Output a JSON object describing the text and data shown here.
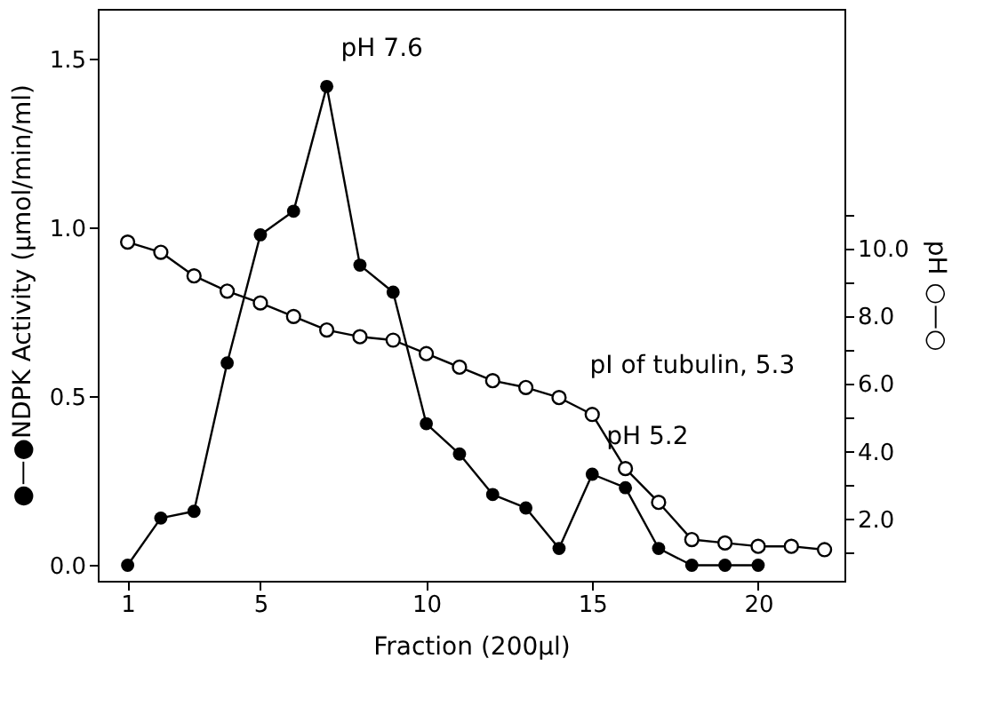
{
  "chart_data": {
    "type": "line",
    "xlabel": "Fraction (200µl)",
    "ylabel": "●—●NDPK Activity (µmol/min/ml)",
    "y2label": "pH ○—○",
    "x": [
      1,
      2,
      3,
      4,
      5,
      6,
      7,
      8,
      9,
      10,
      11,
      12,
      13,
      14,
      15,
      16,
      17,
      18,
      19,
      20,
      21,
      22
    ],
    "series": [
      {
        "color": "#000000",
        "x": [
          1,
          2,
          3,
          4,
          5,
          6,
          7,
          8,
          9,
          10,
          11,
          12,
          13,
          14,
          15,
          16,
          17,
          18,
          19,
          20
        ],
        "values": [
          0.0,
          0.14,
          0.16,
          0.6,
          0.98,
          1.05,
          1.42,
          0.89,
          0.81,
          0.42,
          0.33,
          0.21,
          0.17,
          0.05,
          0.27,
          0.23,
          0.05,
          0.0,
          0.0,
          0.0
        ]
      },
      {
        "color": "#000000",
        "axis": "y2",
        "values": [
          10.2,
          9.9,
          9.2,
          8.75,
          8.4,
          8.0,
          7.6,
          7.4,
          7.3,
          6.9,
          6.5,
          6.1,
          5.9,
          5.6,
          5.1,
          3.5,
          2.5,
          1.4,
          1.3,
          1.2,
          1.2,
          1.1
        ]
      }
    ],
    "xlim": [
      0.1,
      22.6
    ],
    "xticks": [
      1,
      5,
      10,
      15,
      20
    ],
    "ylim": [
      -0.046,
      1.65
    ],
    "yticks": [
      {
        "value": 0,
        "label": "0.0"
      },
      {
        "value": 0.5,
        "label": "0.5"
      },
      {
        "value": 1,
        "label": "1.0"
      },
      {
        "value": 1.5,
        "label": "1.5"
      }
    ],
    "y2lim": [
      0.18,
      17.1
    ],
    "y2ticks": [
      {
        "value": 1,
        "label": null
      },
      {
        "value": 2,
        "label": "2.0"
      },
      {
        "value": 3,
        "label": null
      },
      {
        "value": 4,
        "label": "4.0"
      },
      {
        "value": 5,
        "label": null
      },
      {
        "value": 6,
        "label": "6.0"
      },
      {
        "value": 7,
        "label": null
      },
      {
        "value": 8,
        "label": "8.0"
      },
      {
        "value": 9,
        "label": null
      },
      {
        "value": 10,
        "label": "10.0"
      },
      {
        "value": 11,
        "label": null
      }
    ],
    "annotations": [
      {
        "text": "pH 7.6",
        "x": 7,
        "y": 1.42
      },
      {
        "text": "pI of tubulin, 5.3",
        "x": 14.5,
        "y": 0.48
      },
      {
        "text": "pH 5.2",
        "x": 15,
        "y": 0.27
      }
    ],
    "grid": false,
    "marker": "circle",
    "line_style": "solid"
  }
}
